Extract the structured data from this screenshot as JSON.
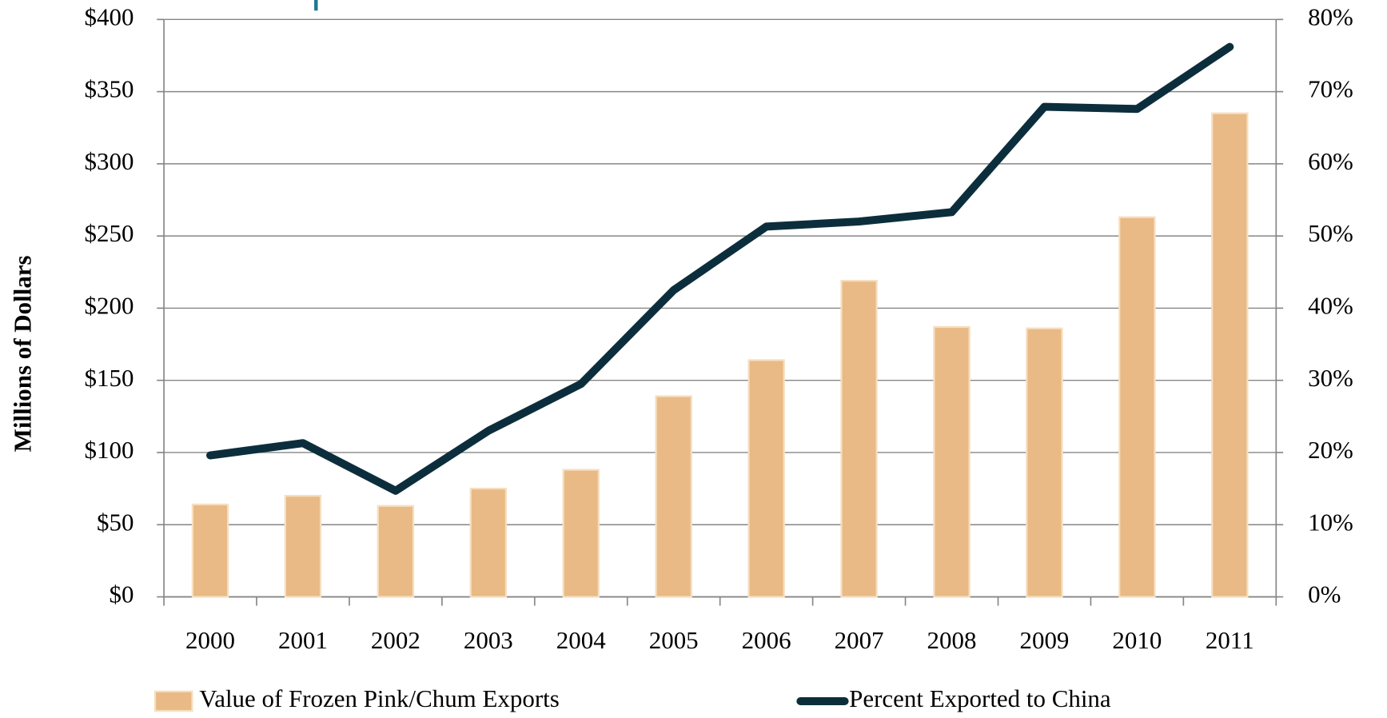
{
  "chart_data": {
    "type": "bar_line",
    "y_axis_label": "Millions of Dollars",
    "categories": [
      "2000",
      "2001",
      "2002",
      "2003",
      "2004",
      "2005",
      "2006",
      "2007",
      "2008",
      "2009",
      "2010",
      "2011"
    ],
    "series": [
      {
        "name": "Value of Frozen Pink/Chum Exports",
        "type": "bar",
        "color": "#e9ba86",
        "values": [
          64,
          70,
          63,
          75,
          88,
          139,
          164,
          219,
          187,
          186,
          263,
          335
        ]
      },
      {
        "name": "Percent Exported to China",
        "type": "line",
        "axis": "y2",
        "color": "#0c2e3c",
        "values": [
          19.6,
          21.3,
          14.7,
          23,
          29.5,
          42.5,
          51.3,
          52,
          53.3,
          67.9,
          67.6,
          76.2
        ]
      }
    ],
    "ylim": [
      0,
      400
    ],
    "yticks": [
      {
        "value": 0,
        "label": "$0"
      },
      {
        "value": 50,
        "label": "$50"
      },
      {
        "value": 100,
        "label": "$100"
      },
      {
        "value": 150,
        "label": "$150"
      },
      {
        "value": 200,
        "label": "$200"
      },
      {
        "value": 250,
        "label": "$250"
      },
      {
        "value": 300,
        "label": "$300"
      },
      {
        "value": 350,
        "label": "$350"
      },
      {
        "value": 400,
        "label": "$400"
      }
    ],
    "y2lim": [
      0,
      80
    ],
    "y2ticks": [
      {
        "value": 0,
        "label": "0%"
      },
      {
        "value": 10,
        "label": "10%"
      },
      {
        "value": 20,
        "label": "20%"
      },
      {
        "value": 30,
        "label": "30%"
      },
      {
        "value": 40,
        "label": "40%"
      },
      {
        "value": 50,
        "label": "50%"
      },
      {
        "value": 60,
        "label": "60%"
      },
      {
        "value": 70,
        "label": "70%"
      },
      {
        "value": 80,
        "label": "80%"
      }
    ],
    "grid": true,
    "legend": "bottom"
  }
}
